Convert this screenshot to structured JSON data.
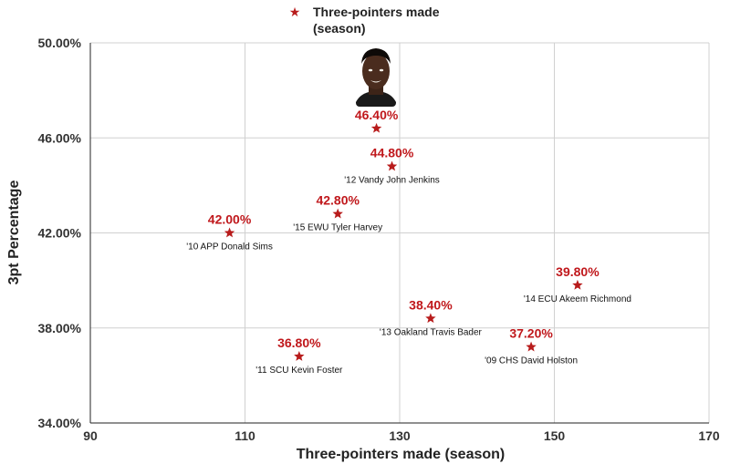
{
  "chart_data": {
    "type": "scatter",
    "title": "",
    "xlabel": "Three-pointers made (season)",
    "ylabel": "3pt Percentage",
    "xlim": [
      90,
      170
    ],
    "ylim": [
      34,
      50
    ],
    "x_ticks": [
      {
        "value": 90,
        "label": "90"
      },
      {
        "value": 110,
        "label": "110"
      },
      {
        "value": 130,
        "label": "130"
      },
      {
        "value": 150,
        "label": "150"
      },
      {
        "value": 170,
        "label": "170"
      }
    ],
    "y_ticks": [
      {
        "value": 34,
        "label": "34.00%"
      },
      {
        "value": 38,
        "label": "38.00%"
      },
      {
        "value": 42,
        "label": "42.00%"
      },
      {
        "value": 46,
        "label": "46.00%"
      },
      {
        "value": 50,
        "label": "50.00%"
      }
    ],
    "grid": true,
    "legend": {
      "position": "top",
      "entries": [
        {
          "line1": "Three-pointers made",
          "line2": "(season)"
        }
      ]
    },
    "marker_color": "#b81c1c",
    "label_color": "#c0181c",
    "points": [
      {
        "x": 108,
        "y": 42.0,
        "value_label": "42.00%",
        "name": "'10 APP Donald Sims"
      },
      {
        "x": 117,
        "y": 36.8,
        "value_label": "36.80%",
        "name": "'11 SCU Kevin Foster"
      },
      {
        "x": 122,
        "y": 42.8,
        "value_label": "42.80%",
        "name": "'15 EWU Tyler Harvey"
      },
      {
        "x": 127,
        "y": 46.4,
        "value_label": "46.40%",
        "name": "",
        "has_photo": true
      },
      {
        "x": 129,
        "y": 44.8,
        "value_label": "44.80%",
        "name": "'12 Vandy John Jenkins"
      },
      {
        "x": 134,
        "y": 38.4,
        "value_label": "38.40%",
        "name": "'13 Oakland Travis Bader"
      },
      {
        "x": 147,
        "y": 37.2,
        "value_label": "37.20%",
        "name": "'09 CHS David Holston"
      },
      {
        "x": 153,
        "y": 39.8,
        "value_label": "39.80%",
        "name": "'14 ECU Akeem Richmond"
      }
    ]
  }
}
